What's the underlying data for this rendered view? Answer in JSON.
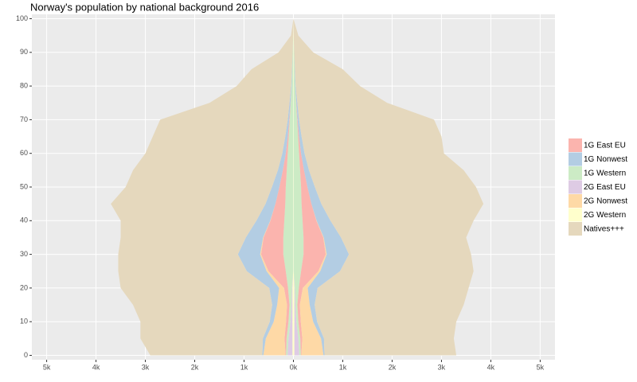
{
  "chart_data": {
    "type": "pyramid",
    "title": "Norway's population by national background 2016",
    "y": [
      0,
      5,
      10,
      15,
      20,
      25,
      30,
      35,
      40,
      45,
      50,
      55,
      60,
      65,
      70,
      75,
      80,
      85,
      90,
      95,
      100
    ],
    "ylim": [
      -1.3,
      101.3
    ],
    "yticks": [
      0,
      10,
      20,
      30,
      40,
      50,
      60,
      70,
      80,
      90,
      100
    ],
    "xlim": [
      -5300,
      5300
    ],
    "xticks": [
      {
        "value": -5000,
        "label": "5k"
      },
      {
        "value": -4000,
        "label": "4k"
      },
      {
        "value": -3000,
        "label": "3k"
      },
      {
        "value": -2000,
        "label": "2k"
      },
      {
        "value": -1000,
        "label": "1k"
      },
      {
        "value": 0,
        "label": "0k"
      },
      {
        "value": 1000,
        "label": "1k"
      },
      {
        "value": 2000,
        "label": "2k"
      },
      {
        "value": 3000,
        "label": "3k"
      },
      {
        "value": 4000,
        "label": "4k"
      },
      {
        "value": 5000,
        "label": "5k"
      }
    ],
    "grid": true,
    "legend": "right",
    "series": [
      {
        "name": "1G East EU",
        "color": "#fbb4ae",
        "left": [
          -10,
          -40,
          -50,
          -50,
          -80,
          -350,
          -450,
          -400,
          -280,
          -200,
          -130,
          -80,
          -40,
          -20,
          -10,
          -5,
          0,
          0,
          0,
          0,
          0
        ],
        "right": [
          10,
          40,
          50,
          50,
          80,
          350,
          450,
          400,
          280,
          200,
          130,
          80,
          40,
          20,
          10,
          5,
          0,
          0,
          0,
          0,
          0
        ]
      },
      {
        "name": "1G Nonwest",
        "color": "#b3cde3",
        "left": [
          -20,
          -60,
          -80,
          -100,
          -200,
          -400,
          -450,
          -350,
          -280,
          -200,
          -150,
          -100,
          -70,
          -50,
          -30,
          -20,
          -10,
          -5,
          0,
          0,
          0
        ],
        "right": [
          20,
          60,
          80,
          100,
          200,
          400,
          450,
          350,
          280,
          200,
          150,
          100,
          70,
          50,
          30,
          20,
          10,
          5,
          0,
          0,
          0
        ]
      },
      {
        "name": "1G Western",
        "color": "#ccebc5",
        "left": [
          -30,
          -40,
          -40,
          -40,
          -80,
          -150,
          -200,
          -200,
          -180,
          -160,
          -150,
          -130,
          -110,
          -90,
          -70,
          -50,
          -30,
          -20,
          -10,
          0,
          0
        ],
        "right": [
          30,
          40,
          40,
          40,
          80,
          150,
          200,
          200,
          180,
          160,
          150,
          130,
          110,
          90,
          70,
          50,
          30,
          20,
          10,
          0,
          0
        ]
      },
      {
        "name": "2G East EU",
        "color": "#decbe4",
        "left": [
          -100,
          -80,
          -40,
          -20,
          -10,
          0,
          0,
          0,
          0,
          0,
          0,
          0,
          0,
          0,
          0,
          0,
          0,
          0,
          0,
          0,
          0
        ],
        "right": [
          100,
          80,
          40,
          20,
          10,
          0,
          0,
          0,
          0,
          0,
          0,
          0,
          0,
          0,
          0,
          0,
          0,
          0,
          0,
          0,
          0
        ]
      },
      {
        "name": "2G Nonwest",
        "color": "#fed9a6",
        "left": [
          -450,
          -380,
          -250,
          -200,
          -100,
          -40,
          -20,
          -10,
          -5,
          0,
          0,
          0,
          0,
          0,
          0,
          0,
          0,
          0,
          0,
          0,
          0
        ],
        "right": [
          450,
          380,
          250,
          200,
          100,
          40,
          20,
          10,
          5,
          0,
          0,
          0,
          0,
          0,
          0,
          0,
          0,
          0,
          0,
          0,
          0
        ]
      },
      {
        "name": "2G Western",
        "color": "#ffffcc",
        "left": [
          -20,
          -20,
          -20,
          -20,
          -20,
          -5,
          -5,
          -5,
          -5,
          -5,
          -5,
          -5,
          -5,
          -5,
          -5,
          -5,
          -5,
          -5,
          -5,
          -5,
          0
        ],
        "right": [
          20,
          20,
          20,
          20,
          20,
          5,
          5,
          5,
          5,
          5,
          5,
          5,
          5,
          5,
          5,
          5,
          5,
          5,
          5,
          5,
          0
        ]
      },
      {
        "name": "Natives+++",
        "color": "#e5d8bd",
        "left": [
          -2270,
          -2480,
          -2620,
          -2820,
          -3010,
          -2605,
          -2425,
          -2535,
          -2750,
          -3135,
          -2965,
          -2935,
          -2775,
          -2685,
          -2585,
          -1620,
          -1105,
          -820,
          -285,
          -45,
          0
        ],
        "right": [
          2670,
          2630,
          2820,
          3020,
          3060,
          2705,
          2475,
          2535,
          2900,
          3285,
          3265,
          3135,
          2825,
          2835,
          2735,
          1820,
          1305,
          970,
          385,
          95,
          0
        ]
      }
    ]
  }
}
